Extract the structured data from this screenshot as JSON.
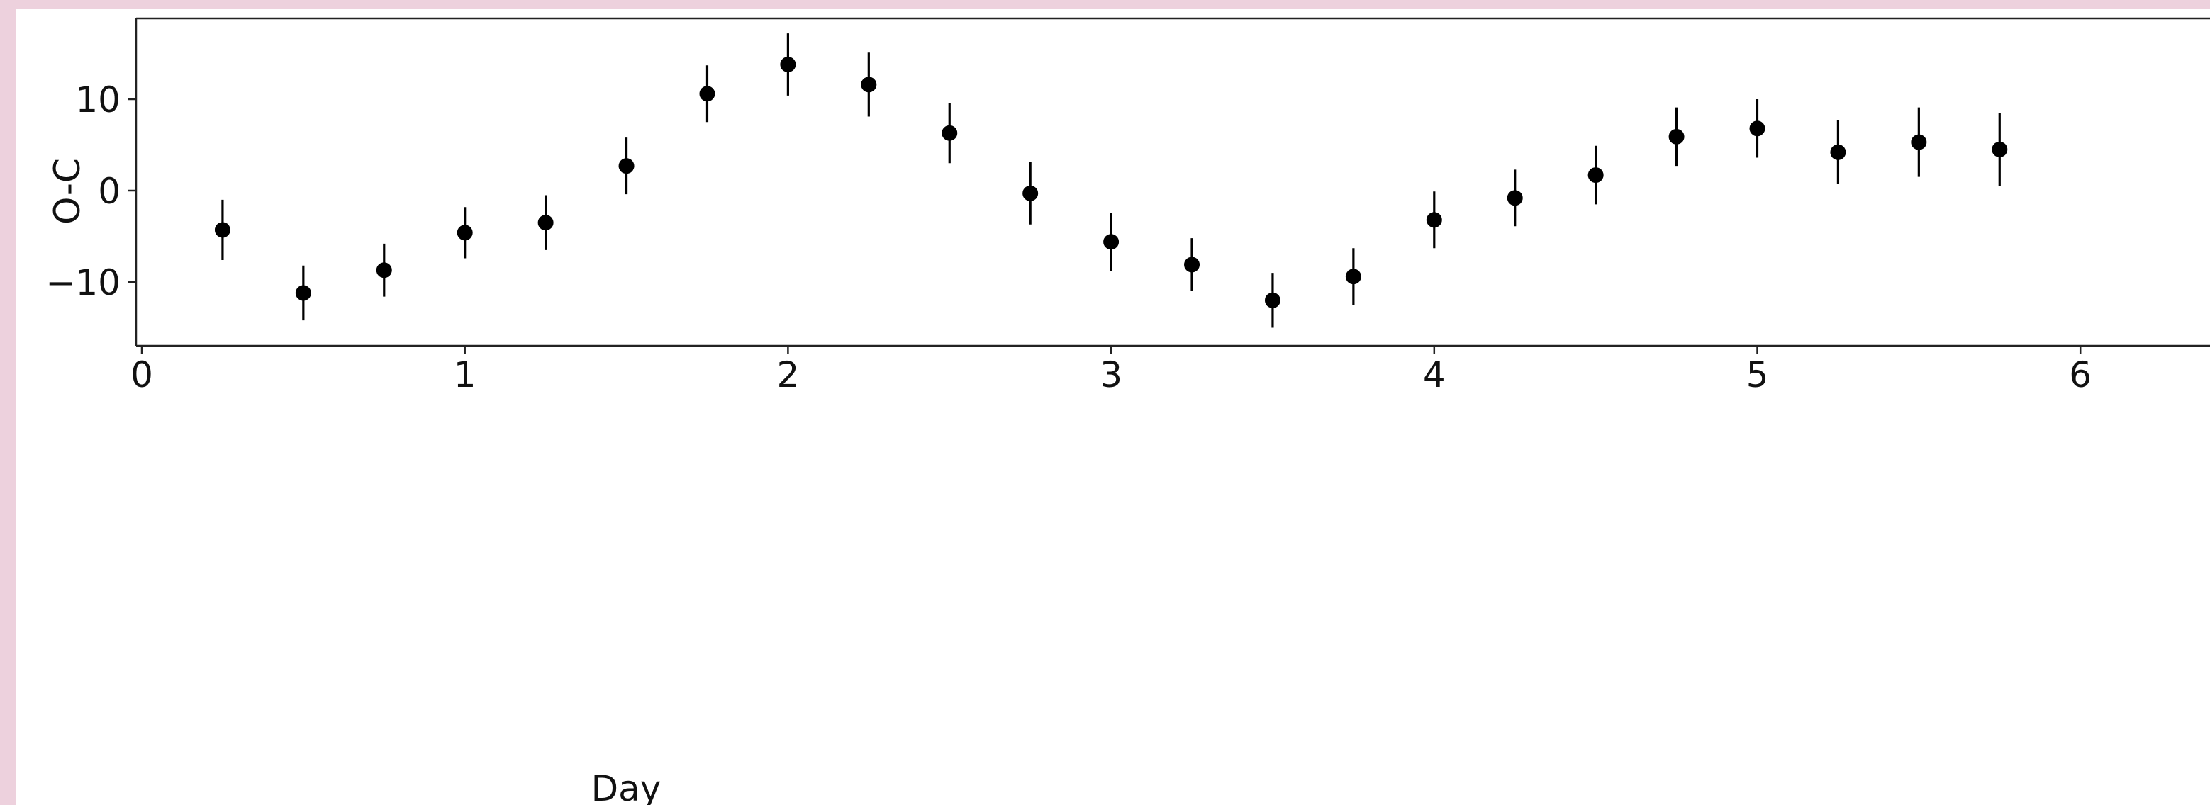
{
  "chart_data": {
    "type": "scatter",
    "xlabel": "Day",
    "ylabel": "O-C",
    "xlim": [
      -0.05,
      6.5
    ],
    "ylim": [
      -16.5,
      19
    ],
    "xticks": [
      0,
      1,
      2,
      3,
      4,
      5,
      6
    ],
    "xtick_labels": [
      "0",
      "1",
      "2",
      "3",
      "4",
      "5",
      "6"
    ],
    "yticks": [
      -10,
      0,
      10
    ],
    "ytick_labels": [
      "−10",
      "0",
      "10"
    ],
    "grid": false,
    "legend": "none",
    "marker_color": "#000000",
    "points": [
      {
        "x": 0.25,
        "y": -4.3,
        "err": 3.3
      },
      {
        "x": 0.5,
        "y": -11.2,
        "err": 3.0
      },
      {
        "x": 0.75,
        "y": -8.7,
        "err": 2.9
      },
      {
        "x": 1.0,
        "y": -4.6,
        "err": 2.8
      },
      {
        "x": 1.25,
        "y": -3.5,
        "err": 3.0
      },
      {
        "x": 1.5,
        "y": 2.7,
        "err": 3.1
      },
      {
        "x": 1.75,
        "y": 10.6,
        "err": 3.1
      },
      {
        "x": 2.0,
        "y": 13.8,
        "err": 3.4
      },
      {
        "x": 2.25,
        "y": 11.6,
        "err": 3.5
      },
      {
        "x": 2.5,
        "y": 6.3,
        "err": 3.3
      },
      {
        "x": 2.75,
        "y": -0.3,
        "err": 3.4
      },
      {
        "x": 3.0,
        "y": -5.6,
        "err": 3.2
      },
      {
        "x": 3.25,
        "y": -8.1,
        "err": 2.9
      },
      {
        "x": 3.5,
        "y": -12.0,
        "err": 3.0
      },
      {
        "x": 3.75,
        "y": -9.4,
        "err": 3.1
      },
      {
        "x": 4.0,
        "y": -3.2,
        "err": 3.1
      },
      {
        "x": 4.25,
        "y": -0.8,
        "err": 3.1
      },
      {
        "x": 4.5,
        "y": 1.7,
        "err": 3.2
      },
      {
        "x": 4.75,
        "y": 5.9,
        "err": 3.2
      },
      {
        "x": 5.0,
        "y": 6.8,
        "err": 3.2
      },
      {
        "x": 5.25,
        "y": 4.2,
        "err": 3.5
      },
      {
        "x": 5.5,
        "y": 5.3,
        "err": 3.8
      },
      {
        "x": 5.75,
        "y": 4.5,
        "err": 4.0
      }
    ]
  }
}
